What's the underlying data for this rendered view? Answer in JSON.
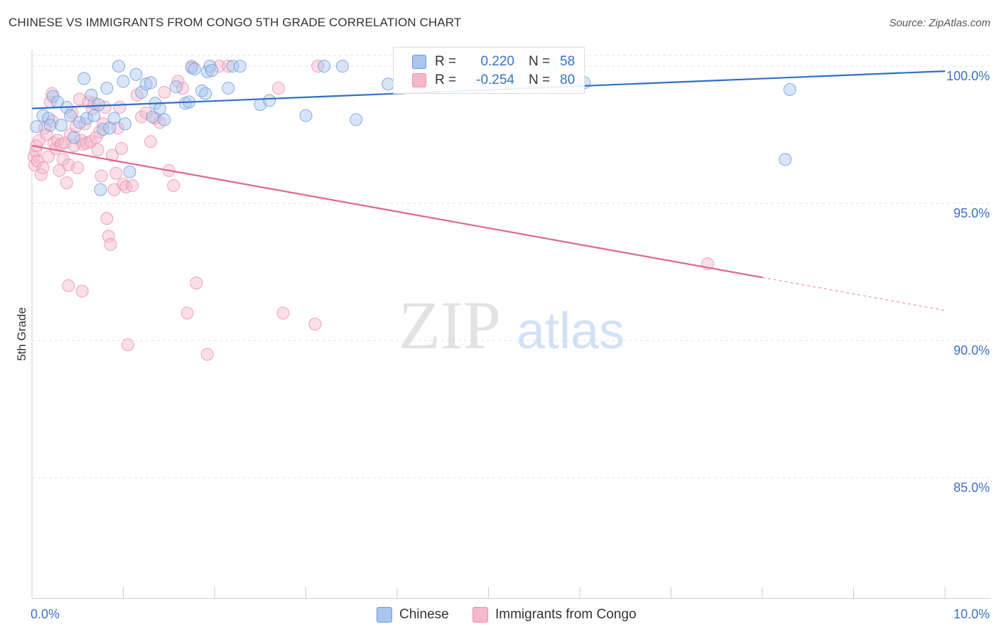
{
  "header": {
    "title": "CHINESE VS IMMIGRANTS FROM CONGO 5TH GRADE CORRELATION CHART",
    "source": "Source: ZipAtlas.com"
  },
  "watermark": {
    "zip": "ZIP",
    "atlas": "atlas"
  },
  "colors": {
    "blue_fill": "#a8c6ee",
    "blue_stroke": "#6f9ad8",
    "blue_line": "#2f6ec6",
    "pink_fill": "#f5b8cb",
    "pink_stroke": "#ea8fac",
    "pink_line": "#e06690",
    "axis_text": "#3a72c4",
    "grid": "#e3e3e3"
  },
  "legend": {
    "rows": [
      {
        "r_label": "R =",
        "r_value": "0.220",
        "n_label": "N =",
        "n_value": "58"
      },
      {
        "r_label": "R =",
        "r_value": "-0.254",
        "n_label": "N =",
        "n_value": "80"
      }
    ]
  },
  "bottom_legend": {
    "items": [
      {
        "label": "Chinese"
      },
      {
        "label": "Immigrants from Congo"
      }
    ]
  },
  "chart_data": {
    "type": "scatter",
    "title": "CHINESE VS IMMIGRANTS FROM CONGO 5TH GRADE CORRELATION CHART",
    "xlabel": "",
    "ylabel": "5th Grade",
    "xlim": [
      0,
      10
    ],
    "ylim": [
      80.6,
      100.6
    ],
    "x_tick_labels": [
      "0.0%",
      "10.0%"
    ],
    "y_ticks": [
      {
        "value": 100,
        "label": "100.0%"
      },
      {
        "value": 95,
        "label": "95.0%"
      },
      {
        "value": 90,
        "label": "90.0%"
      },
      {
        "value": 85,
        "label": "85.0%"
      }
    ],
    "grid": true,
    "legend_position": "top-center",
    "series": [
      {
        "name": "Chinese",
        "r": 0.22,
        "n": 58,
        "trend": {
          "x": [
            0,
            10
          ],
          "y": [
            98.46,
            99.82
          ]
        },
        "points": [
          [
            0.05,
            97.8
          ],
          [
            0.12,
            98.2
          ],
          [
            0.18,
            98.1
          ],
          [
            0.2,
            97.85
          ],
          [
            0.23,
            98.9
          ],
          [
            0.28,
            98.7
          ],
          [
            0.32,
            97.85
          ],
          [
            0.38,
            98.5
          ],
          [
            0.42,
            98.2
          ],
          [
            0.46,
            97.4
          ],
          [
            0.52,
            97.95
          ],
          [
            0.57,
            99.55
          ],
          [
            0.6,
            98.1
          ],
          [
            0.65,
            98.95
          ],
          [
            0.68,
            98.2
          ],
          [
            0.73,
            98.6
          ],
          [
            0.75,
            95.5
          ],
          [
            0.78,
            97.7
          ],
          [
            0.82,
            99.2
          ],
          [
            0.85,
            97.75
          ],
          [
            0.9,
            98.1
          ],
          [
            0.95,
            100.0
          ],
          [
            1.0,
            99.45
          ],
          [
            1.02,
            97.9
          ],
          [
            1.07,
            96.15
          ],
          [
            1.14,
            99.7
          ],
          [
            1.2,
            99.05
          ],
          [
            1.25,
            99.35
          ],
          [
            1.3,
            99.4
          ],
          [
            1.32,
            98.15
          ],
          [
            1.35,
            98.65
          ],
          [
            1.4,
            98.45
          ],
          [
            1.45,
            98.05
          ],
          [
            1.58,
            99.25
          ],
          [
            1.68,
            98.65
          ],
          [
            1.72,
            98.7
          ],
          [
            1.75,
            99.95
          ],
          [
            1.78,
            99.9
          ],
          [
            1.86,
            99.1
          ],
          [
            1.9,
            99.0
          ],
          [
            1.92,
            99.8
          ],
          [
            1.95,
            100.0
          ],
          [
            1.97,
            99.85
          ],
          [
            2.15,
            99.2
          ],
          [
            2.2,
            100.0
          ],
          [
            2.28,
            100.0
          ],
          [
            2.5,
            98.6
          ],
          [
            2.6,
            98.75
          ],
          [
            3.0,
            98.2
          ],
          [
            3.2,
            100.0
          ],
          [
            3.4,
            100.0
          ],
          [
            3.55,
            98.05
          ],
          [
            3.9,
            99.35
          ],
          [
            4.55,
            99.45
          ],
          [
            5.7,
            100.0
          ],
          [
            6.05,
            99.4
          ],
          [
            8.3,
            99.15
          ],
          [
            8.25,
            96.6
          ]
        ]
      },
      {
        "name": "Immigrants from Congo",
        "r": -0.254,
        "n": 80,
        "trend": {
          "x": [
            0,
            8
          ],
          "y": [
            97.1,
            92.3
          ]
        },
        "trend_dashed": {
          "x": [
            8,
            10
          ],
          "y": [
            92.3,
            91.1
          ]
        },
        "points": [
          [
            0.02,
            96.7
          ],
          [
            0.03,
            96.4
          ],
          [
            0.04,
            96.9
          ],
          [
            0.05,
            97.1
          ],
          [
            0.06,
            96.55
          ],
          [
            0.08,
            97.3
          ],
          [
            0.1,
            96.05
          ],
          [
            0.12,
            96.3
          ],
          [
            0.14,
            97.75
          ],
          [
            0.16,
            97.5
          ],
          [
            0.18,
            96.7
          ],
          [
            0.2,
            98.7
          ],
          [
            0.22,
            98.0
          ],
          [
            0.24,
            97.2
          ],
          [
            0.26,
            97.0
          ],
          [
            0.28,
            97.3
          ],
          [
            0.3,
            96.2
          ],
          [
            0.32,
            97.15
          ],
          [
            0.34,
            96.6
          ],
          [
            0.36,
            97.2
          ],
          [
            0.38,
            95.75
          ],
          [
            0.4,
            96.4
          ],
          [
            0.42,
            97.5
          ],
          [
            0.44,
            98.3
          ],
          [
            0.46,
            97.1
          ],
          [
            0.48,
            97.8
          ],
          [
            0.5,
            96.3
          ],
          [
            0.52,
            98.8
          ],
          [
            0.54,
            97.3
          ],
          [
            0.56,
            97.15
          ],
          [
            0.58,
            97.9
          ],
          [
            0.6,
            97.2
          ],
          [
            0.62,
            98.7
          ],
          [
            0.64,
            97.25
          ],
          [
            0.66,
            98.45
          ],
          [
            0.68,
            98.65
          ],
          [
            0.7,
            97.4
          ],
          [
            0.72,
            96.95
          ],
          [
            0.74,
            97.6
          ],
          [
            0.76,
            96.0
          ],
          [
            0.78,
            97.9
          ],
          [
            0.8,
            98.5
          ],
          [
            0.82,
            94.45
          ],
          [
            0.84,
            93.8
          ],
          [
            0.86,
            93.5
          ],
          [
            0.88,
            96.75
          ],
          [
            0.9,
            95.5
          ],
          [
            0.92,
            96.1
          ],
          [
            0.94,
            97.75
          ],
          [
            0.96,
            98.5
          ],
          [
            0.98,
            97.0
          ],
          [
            1.0,
            95.7
          ],
          [
            1.03,
            95.6
          ],
          [
            1.05,
            89.85
          ],
          [
            1.1,
            95.65
          ],
          [
            1.15,
            98.95
          ],
          [
            1.2,
            98.15
          ],
          [
            1.25,
            98.3
          ],
          [
            1.3,
            97.25
          ],
          [
            1.35,
            98.1
          ],
          [
            1.4,
            97.95
          ],
          [
            1.45,
            99.05
          ],
          [
            1.5,
            96.2
          ],
          [
            1.55,
            95.65
          ],
          [
            1.6,
            99.45
          ],
          [
            1.65,
            99.2
          ],
          [
            1.7,
            91.0
          ],
          [
            1.75,
            100.0
          ],
          [
            1.8,
            92.1
          ],
          [
            1.92,
            89.5
          ],
          [
            2.05,
            100.0
          ],
          [
            2.15,
            100.0
          ],
          [
            2.7,
            99.2
          ],
          [
            2.75,
            91.0
          ],
          [
            3.1,
            90.6
          ],
          [
            3.13,
            100.0
          ],
          [
            0.4,
            92.0
          ],
          [
            0.55,
            91.8
          ],
          [
            0.22,
            99.0
          ],
          [
            7.4,
            92.8
          ]
        ]
      }
    ]
  }
}
